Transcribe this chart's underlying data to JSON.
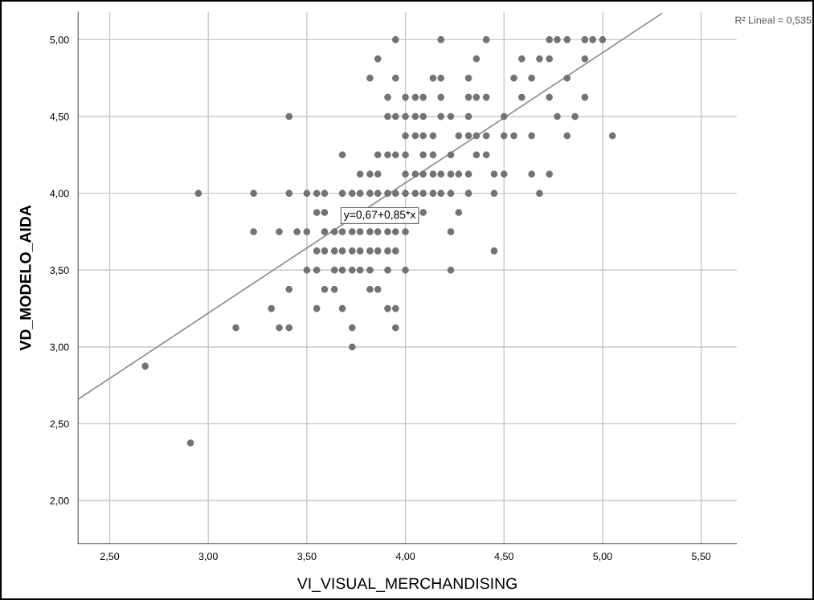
{
  "chart_data": {
    "type": "scatter",
    "xlabel": "VI_VISUAL_MERCHANDISING",
    "ylabel": "VD_MODELO_AIDA",
    "xlim": [
      2.34,
      5.68
    ],
    "ylim": [
      1.72,
      5.18
    ],
    "xticks": [
      {
        "value": 2.5,
        "label": "2,50"
      },
      {
        "value": 3.0,
        "label": "3,00"
      },
      {
        "value": 3.5,
        "label": "3,50"
      },
      {
        "value": 4.0,
        "label": "4,00"
      },
      {
        "value": 4.5,
        "label": "4,50"
      },
      {
        "value": 5.0,
        "label": "5,00"
      },
      {
        "value": 5.5,
        "label": "5,50"
      }
    ],
    "yticks": [
      {
        "value": 2.0,
        "label": "2,00"
      },
      {
        "value": 2.5,
        "label": "2,50"
      },
      {
        "value": 3.0,
        "label": "3,00"
      },
      {
        "value": 3.5,
        "label": "3,50"
      },
      {
        "value": 4.0,
        "label": "4,00"
      },
      {
        "value": 4.5,
        "label": "4,50"
      },
      {
        "value": 5.0,
        "label": "5,00"
      }
    ],
    "grid": true,
    "annotations": [
      "y=0,67+0,85*x",
      "R² Lineal = 0,535"
    ],
    "series": [
      {
        "color": "#737373",
        "marker": "circle",
        "x": [
          3.95,
          4.18,
          4.41,
          4.73,
          4.77,
          4.82,
          4.91,
          4.95,
          5.0,
          3.86,
          4.36,
          4.59,
          4.68,
          4.73,
          4.91,
          3.82,
          3.95,
          4.14,
          4.18,
          4.32,
          4.55,
          4.64,
          4.82,
          3.91,
          4.0,
          4.05,
          4.09,
          4.18,
          4.32,
          4.36,
          4.41,
          4.59,
          4.73,
          4.91,
          3.41,
          3.91,
          3.95,
          4.0,
          4.05,
          4.09,
          4.18,
          4.23,
          4.32,
          4.5,
          4.77,
          4.86,
          4.0,
          4.05,
          4.09,
          4.14,
          4.27,
          4.32,
          4.36,
          4.41,
          4.5,
          4.55,
          4.64,
          4.82,
          5.05,
          3.68,
          3.86,
          3.91,
          3.95,
          4.0,
          4.09,
          4.14,
          4.23,
          4.36,
          4.41,
          3.77,
          3.82,
          3.86,
          4.0,
          4.05,
          4.09,
          4.14,
          4.18,
          4.23,
          4.27,
          4.32,
          4.45,
          4.5,
          4.64,
          4.73,
          2.95,
          3.23,
          3.41,
          3.5,
          3.55,
          3.59,
          3.68,
          3.73,
          3.77,
          3.82,
          3.86,
          3.91,
          3.95,
          4.0,
          4.05,
          4.09,
          4.14,
          4.18,
          4.23,
          4.32,
          4.45,
          4.68,
          3.55,
          3.59,
          4.09,
          4.27,
          3.23,
          3.36,
          3.45,
          3.5,
          3.59,
          3.64,
          3.68,
          3.73,
          3.77,
          3.82,
          3.86,
          3.91,
          3.95,
          4.0,
          4.23,
          3.55,
          3.59,
          3.64,
          3.68,
          3.73,
          3.77,
          3.82,
          3.86,
          3.91,
          3.95,
          4.45,
          3.5,
          3.55,
          3.64,
          3.68,
          3.73,
          3.77,
          3.82,
          3.91,
          4.0,
          4.23,
          3.41,
          3.59,
          3.64,
          3.82,
          3.86,
          3.32,
          3.55,
          3.68,
          3.91,
          3.95,
          3.14,
          3.36,
          3.41,
          3.73,
          3.95,
          3.73,
          2.68,
          2.91
        ],
        "values": [
          5.0,
          5.0,
          5.0,
          5.0,
          5.0,
          5.0,
          5.0,
          5.0,
          5.0,
          4.875,
          4.875,
          4.875,
          4.875,
          4.875,
          4.875,
          4.75,
          4.75,
          4.75,
          4.75,
          4.75,
          4.75,
          4.75,
          4.75,
          4.625,
          4.625,
          4.625,
          4.625,
          4.625,
          4.625,
          4.625,
          4.625,
          4.625,
          4.625,
          4.625,
          4.5,
          4.5,
          4.5,
          4.5,
          4.5,
          4.5,
          4.5,
          4.5,
          4.5,
          4.5,
          4.5,
          4.5,
          4.375,
          4.375,
          4.375,
          4.375,
          4.375,
          4.375,
          4.375,
          4.375,
          4.375,
          4.375,
          4.375,
          4.375,
          4.375,
          4.25,
          4.25,
          4.25,
          4.25,
          4.25,
          4.25,
          4.25,
          4.25,
          4.25,
          4.25,
          4.125,
          4.125,
          4.125,
          4.125,
          4.125,
          4.125,
          4.125,
          4.125,
          4.125,
          4.125,
          4.125,
          4.125,
          4.125,
          4.125,
          4.125,
          4.0,
          4.0,
          4.0,
          4.0,
          4.0,
          4.0,
          4.0,
          4.0,
          4.0,
          4.0,
          4.0,
          4.0,
          4.0,
          4.0,
          4.0,
          4.0,
          4.0,
          4.0,
          4.0,
          4.0,
          4.0,
          4.0,
          3.875,
          3.875,
          3.875,
          3.875,
          3.75,
          3.75,
          3.75,
          3.75,
          3.75,
          3.75,
          3.75,
          3.75,
          3.75,
          3.75,
          3.75,
          3.75,
          3.75,
          3.75,
          3.75,
          3.625,
          3.625,
          3.625,
          3.625,
          3.625,
          3.625,
          3.625,
          3.625,
          3.625,
          3.625,
          3.625,
          3.5,
          3.5,
          3.5,
          3.5,
          3.5,
          3.5,
          3.5,
          3.5,
          3.5,
          3.5,
          3.375,
          3.375,
          3.375,
          3.375,
          3.375,
          3.25,
          3.25,
          3.25,
          3.25,
          3.25,
          3.125,
          3.125,
          3.125,
          3.125,
          3.125,
          3.0,
          2.875,
          2.375
        ]
      },
      {
        "type": "line",
        "marker": "none",
        "color": "#8c8c8c",
        "x": [
          2.34,
          5.3
        ],
        "values": [
          2.66,
          5.17
        ]
      }
    ]
  }
}
